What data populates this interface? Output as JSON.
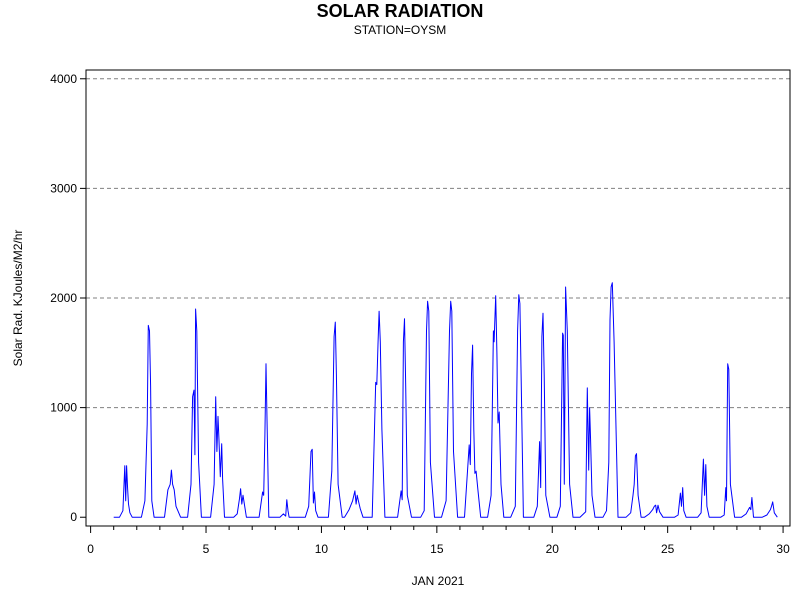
{
  "chart_data": {
    "type": "line",
    "title": "SOLAR RADIATION",
    "subtitle": "STATION=OYSM",
    "xlabel": "JAN 2021",
    "ylabel": "Solar Rad. KJoules/M2/hr",
    "xlim": [
      -0.2,
      30.3
    ],
    "ylim": [
      -80,
      4080
    ],
    "x_ticks": [
      0,
      5,
      10,
      15,
      20,
      25,
      30
    ],
    "y_ticks": [
      0,
      1000,
      2000,
      3000,
      4000
    ],
    "grid": {
      "y": true,
      "x": false,
      "style": "dashed"
    },
    "series": [
      {
        "color": "#0000ff",
        "x": [
          1.0,
          1.25,
          1.4,
          1.48,
          1.52,
          1.56,
          1.6,
          1.64,
          1.7,
          1.8,
          2.0,
          2.2,
          2.35,
          2.45,
          2.5,
          2.55,
          2.6,
          2.65,
          2.75,
          2.95,
          3.2,
          3.35,
          3.45,
          3.5,
          3.55,
          3.62,
          3.7,
          3.9,
          4.2,
          4.35,
          4.42,
          4.48,
          4.52,
          4.55,
          4.6,
          4.68,
          4.8,
          5.0,
          5.2,
          5.35,
          5.42,
          5.47,
          5.52,
          5.56,
          5.62,
          5.68,
          5.72,
          5.8,
          6.0,
          6.2,
          6.35,
          6.45,
          6.5,
          6.55,
          6.6,
          6.75,
          7.3,
          7.45,
          7.5,
          7.55,
          7.6,
          7.65,
          7.72,
          7.9,
          8.2,
          8.35,
          8.45,
          8.5,
          8.55,
          8.6,
          8.7,
          9.3,
          9.45,
          9.55,
          9.6,
          9.65,
          9.7,
          9.75,
          9.85,
          10.3,
          10.45,
          10.55,
          10.6,
          10.65,
          10.72,
          10.9,
          11.0,
          11.2,
          11.35,
          11.45,
          11.5,
          11.55,
          11.6,
          11.68,
          11.8,
          12.2,
          12.35,
          12.4,
          12.45,
          12.5,
          12.55,
          12.62,
          12.75,
          12.9,
          13.3,
          13.45,
          13.5,
          13.55,
          13.6,
          13.65,
          13.72,
          13.9,
          14.3,
          14.45,
          14.55,
          14.6,
          14.65,
          14.72,
          14.9,
          15.2,
          15.4,
          15.55,
          15.6,
          15.65,
          15.72,
          15.9,
          16.2,
          16.4,
          16.45,
          16.5,
          16.55,
          16.6,
          16.65,
          16.7,
          16.78,
          16.9,
          17.2,
          17.35,
          17.45,
          17.48,
          17.55,
          17.6,
          17.65,
          17.7,
          17.78,
          17.9,
          18.2,
          18.4,
          18.5,
          18.55,
          18.6,
          18.65,
          18.75,
          18.9,
          19.2,
          19.35,
          19.45,
          19.5,
          19.55,
          19.6,
          19.65,
          19.72,
          19.9,
          20.2,
          20.35,
          20.45,
          20.48,
          20.52,
          20.58,
          20.65,
          20.75,
          20.9,
          21.2,
          21.45,
          21.52,
          21.58,
          21.62,
          21.66,
          21.72,
          21.85,
          22.2,
          22.35,
          22.45,
          22.5,
          22.55,
          22.6,
          22.68,
          22.85,
          23.2,
          23.4,
          23.5,
          23.55,
          23.6,
          23.65,
          23.72,
          23.85,
          24.0,
          24.2,
          24.35,
          24.42,
          24.48,
          24.52,
          24.58,
          24.65,
          24.8,
          25.3,
          25.45,
          25.55,
          25.6,
          25.65,
          25.7,
          25.8,
          26.3,
          26.45,
          26.55,
          26.6,
          26.65,
          26.7,
          26.8,
          27.3,
          27.45,
          27.52,
          27.55,
          27.6,
          27.65,
          27.72,
          27.9,
          28.2,
          28.4,
          28.55,
          28.6,
          28.65,
          28.72,
          28.85,
          29.1,
          29.3,
          29.45,
          29.5,
          29.55,
          29.62,
          29.75
        ],
        "y": [
          0,
          0,
          60,
          470,
          150,
          470,
          280,
          120,
          40,
          0,
          0,
          0,
          150,
          850,
          1750,
          1700,
          1200,
          150,
          0,
          0,
          0,
          250,
          300,
          430,
          300,
          250,
          100,
          0,
          0,
          300,
          1100,
          1160,
          570,
          1900,
          1700,
          500,
          0,
          0,
          0,
          300,
          1100,
          600,
          920,
          700,
          370,
          670,
          350,
          0,
          0,
          0,
          30,
          170,
          260,
          120,
          200,
          0,
          0,
          230,
          200,
          750,
          1400,
          800,
          0,
          0,
          0,
          30,
          10,
          160,
          60,
          0,
          0,
          0,
          100,
          600,
          620,
          130,
          230,
          60,
          0,
          0,
          420,
          1650,
          1780,
          1300,
          300,
          0,
          0,
          70,
          150,
          240,
          120,
          200,
          150,
          80,
          0,
          0,
          1230,
          1210,
          1580,
          1880,
          1600,
          800,
          0,
          0,
          0,
          240,
          160,
          1600,
          1810,
          1200,
          200,
          0,
          0,
          60,
          1700,
          1970,
          1880,
          500,
          0,
          0,
          150,
          1700,
          1970,
          1880,
          600,
          0,
          0,
          660,
          480,
          1310,
          1570,
          800,
          400,
          420,
          250,
          0,
          0,
          200,
          1700,
          1600,
          2020,
          1500,
          860,
          960,
          300,
          0,
          0,
          100,
          1700,
          2030,
          1950,
          1300,
          0,
          0,
          0,
          100,
          690,
          270,
          1650,
          1860,
          1300,
          200,
          0,
          0,
          100,
          1680,
          1660,
          300,
          2100,
          1700,
          300,
          0,
          0,
          50,
          1180,
          430,
          1000,
          700,
          200,
          0,
          0,
          60,
          500,
          1800,
          2100,
          2140,
          1600,
          0,
          0,
          40,
          200,
          300,
          560,
          580,
          200,
          0,
          0,
          30,
          70,
          100,
          110,
          40,
          110,
          50,
          0,
          0,
          20,
          220,
          100,
          270,
          60,
          0,
          0,
          40,
          530,
          200,
          480,
          100,
          0,
          0,
          20,
          270,
          150,
          1400,
          1350,
          300,
          0,
          0,
          30,
          90,
          70,
          180,
          0,
          0,
          0,
          20,
          70,
          100,
          140,
          40,
          0
        ]
      }
    ]
  }
}
